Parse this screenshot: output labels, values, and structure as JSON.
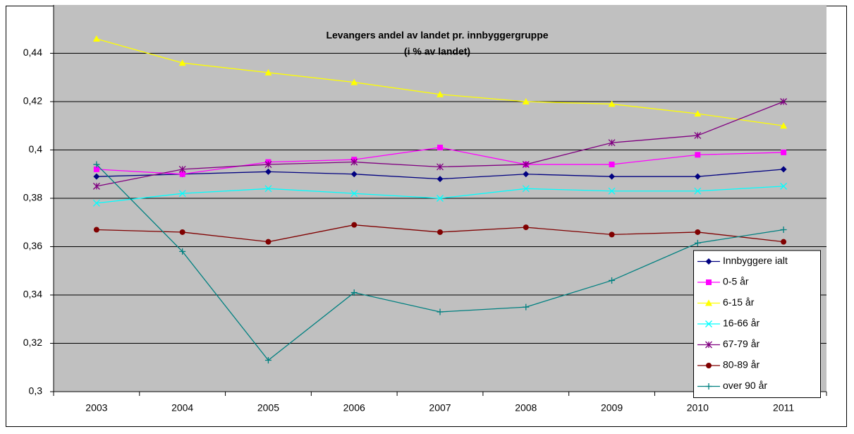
{
  "chart_data": {
    "type": "line",
    "title": "Levangers andel av landet pr. innbyggergruppe",
    "subtitle": "(i % av landet)",
    "categories": [
      "2003",
      "2004",
      "2005",
      "2006",
      "2007",
      "2008",
      "2009",
      "2010",
      "2011"
    ],
    "series": [
      {
        "name": "Innbyggere ialt",
        "color": "#000080",
        "marker": "diamond",
        "values": [
          0.389,
          0.39,
          0.391,
          0.39,
          0.388,
          0.39,
          0.389,
          0.389,
          0.392
        ]
      },
      {
        "name": "0-5 år",
        "color": "#ff00ff",
        "marker": "square",
        "values": [
          0.392,
          0.39,
          0.395,
          0.396,
          0.401,
          0.394,
          0.394,
          0.398,
          0.399
        ]
      },
      {
        "name": "6-15 år",
        "color": "#ffff00",
        "marker": "triangle",
        "values": [
          0.446,
          0.436,
          0.432,
          0.428,
          0.423,
          0.42,
          0.419,
          0.415,
          0.41
        ]
      },
      {
        "name": "16-66 år",
        "color": "#00ffff",
        "marker": "x",
        "values": [
          0.378,
          0.382,
          0.384,
          0.382,
          0.38,
          0.384,
          0.383,
          0.383,
          0.385
        ]
      },
      {
        "name": "67-79 år",
        "color": "#800080",
        "marker": "asterisk",
        "values": [
          0.385,
          0.392,
          0.394,
          0.395,
          0.393,
          0.394,
          0.403,
          0.406,
          0.42
        ]
      },
      {
        "name": "80-89 år",
        "color": "#800000",
        "marker": "circle",
        "values": [
          0.367,
          0.366,
          0.362,
          0.369,
          0.366,
          0.368,
          0.365,
          0.366,
          0.362
        ]
      },
      {
        "name": "over 90 år",
        "color": "#008080",
        "marker": "plus",
        "values": [
          0.394,
          0.358,
          0.313,
          0.341,
          0.333,
          0.335,
          0.346,
          0.3615,
          0.367
        ]
      }
    ],
    "ylim": [
      0.3,
      0.46
    ],
    "yticks": [
      {
        "value": 0.3,
        "label": "0,3"
      },
      {
        "value": 0.32,
        "label": "0,32"
      },
      {
        "value": 0.34,
        "label": "0,34"
      },
      {
        "value": 0.36,
        "label": "0,36"
      },
      {
        "value": 0.38,
        "label": "0,38"
      },
      {
        "value": 0.4,
        "label": "0,4"
      },
      {
        "value": 0.42,
        "label": "0,42"
      },
      {
        "value": 0.44,
        "label": "0,44"
      }
    ],
    "grid": true,
    "legend": "lower right",
    "plot_background": "#c0c0c0"
  }
}
